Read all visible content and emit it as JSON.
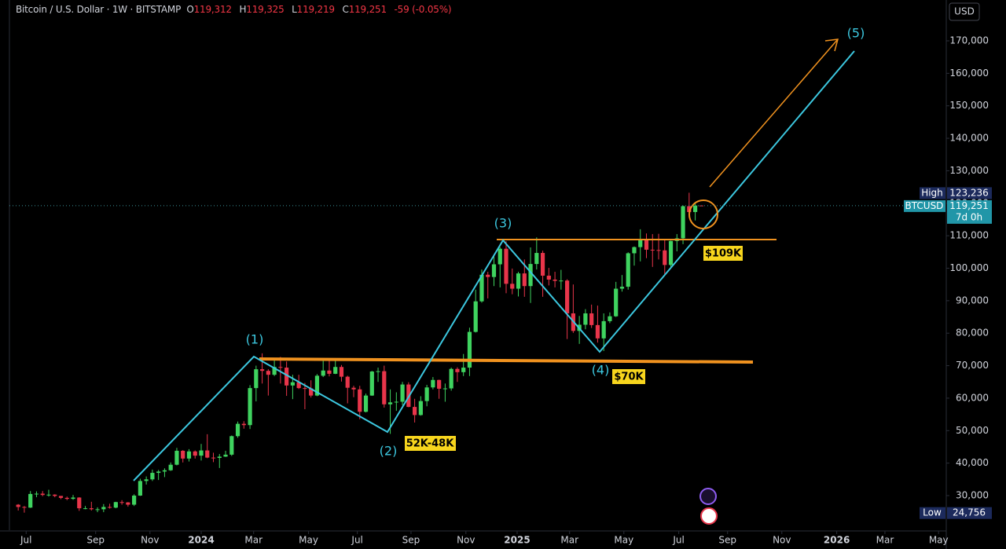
{
  "chart_data": {
    "type": "candlestick",
    "header": {
      "symbol": "Bitcoin / U.S. Dollar · 1W · BITSTAMP",
      "ohlc": [
        {
          "key": "O",
          "value": "119,312"
        },
        {
          "key": "H",
          "value": "119,325"
        },
        {
          "key": "L",
          "value": "119,219"
        },
        {
          "key": "C",
          "value": "119,251"
        }
      ],
      "change": "-59 (-0.05%)"
    },
    "currency": "USD",
    "series": [
      {
        "name": "BTCUSD",
        "up_color": "#3fd35f",
        "down_color": "#e8354a",
        "open": [
          27200,
          26500,
          26300,
          30500,
          30600,
          30200,
          30300,
          29900,
          29300,
          29000,
          29400,
          26100,
          26100,
          25800,
          25800,
          26500,
          26300,
          28000,
          27900,
          27200,
          30000,
          34500,
          35000,
          37000,
          37400,
          37800,
          39500,
          43800,
          41400,
          43600,
          42300,
          43900,
          41700,
          41600,
          42000,
          42600,
          48300,
          52100,
          51700,
          63100,
          68900,
          68400,
          67200,
          69600,
          69400,
          63900,
          64900,
          63100,
          63000,
          60800,
          66900,
          68500,
          67500,
          69600,
          66600,
          63200,
          62700,
          55800,
          60800,
          68200,
          68300,
          58100,
          58700,
          58900,
          64200,
          57300,
          54800,
          59100,
          63300,
          65600,
          62900,
          63000,
          69000,
          68000,
          69400,
          80400,
          89800,
          98000,
          97300,
          101200,
          106000,
          95200,
          93700,
          98400,
          94500,
          101300,
          104700,
          97700,
          96500,
          96100,
          96200,
          86100,
          80700,
          82600,
          86100,
          82500,
          78400,
          83700,
          85200,
          93700,
          94300,
          104600,
          106500,
          109000,
          105700,
          105600,
          105500,
          101000,
          108400,
          109200,
          119100,
          117300,
          119312
        ],
        "high": [
          27400,
          26800,
          31400,
          31300,
          31400,
          31800,
          30400,
          29900,
          29700,
          30200,
          29500,
          26800,
          28100,
          26400,
          27400,
          27500,
          28100,
          28600,
          28000,
          30400,
          35200,
          35900,
          38000,
          37900,
          38400,
          40200,
          44700,
          44000,
          44300,
          43900,
          45900,
          48900,
          43200,
          42800,
          43800,
          48500,
          52800,
          52900,
          64000,
          70000,
          73800,
          68900,
          71600,
          72700,
          71300,
          67200,
          67200,
          64700,
          65500,
          67400,
          71900,
          71900,
          71900,
          70200,
          66900,
          63800,
          63800,
          61400,
          68400,
          69400,
          70000,
          62700,
          61800,
          65000,
          64900,
          59800,
          60600,
          64100,
          66500,
          65700,
          64500,
          69400,
          69500,
          73600,
          81700,
          93400,
          99600,
          98900,
          104000,
          106500,
          108300,
          99900,
          98900,
          102700,
          106400,
          109500,
          105400,
          100100,
          98900,
          99500,
          96600,
          95000,
          85300,
          87400,
          88800,
          88500,
          86100,
          86400,
          95800,
          97900,
          104900,
          106700,
          112000,
          110700,
          110500,
          110600,
          108900,
          108500,
          110500,
          119300,
          123236,
          120200,
          119325
        ],
        "low": [
          25400,
          24756,
          26200,
          29500,
          29800,
          29700,
          29500,
          28900,
          28600,
          28700,
          25300,
          25800,
          25400,
          24900,
          24900,
          26000,
          26100,
          27200,
          26600,
          26800,
          29900,
          33400,
          34500,
          34800,
          35700,
          37600,
          39300,
          40200,
          40500,
          41400,
          40800,
          41500,
          40300,
          38500,
          41900,
          42200,
          47800,
          50600,
          50500,
          59000,
          64500,
          60800,
          66800,
          64500,
          60700,
          59700,
          62800,
          56600,
          60200,
          60600,
          66500,
          66700,
          67400,
          65100,
          58400,
          60300,
          53500,
          55600,
          60700,
          65000,
          57100,
          49000,
          56100,
          57800,
          57200,
          52500,
          54600,
          57500,
          62700,
          59800,
          58900,
          62300,
          65000,
          66800,
          66800,
          80200,
          89400,
          90700,
          94500,
          94100,
          92300,
          92000,
          91300,
          91200,
          89300,
          99600,
          91200,
          94700,
          94100,
          93400,
          78200,
          80100,
          76700,
          81200,
          81600,
          77100,
          74500,
          83100,
          85000,
          92800,
          93400,
          100800,
          102100,
          103100,
          100400,
          102700,
          98200,
          100400,
          105200,
          107400,
          115700,
          114700,
          119219
        ],
        "close": [
          26500,
          26300,
          30500,
          30600,
          30200,
          30300,
          29900,
          29300,
          29000,
          29400,
          26100,
          26100,
          25800,
          25800,
          26500,
          26300,
          28000,
          27900,
          27200,
          30000,
          34500,
          35000,
          37000,
          37400,
          37800,
          39500,
          43800,
          41400,
          43600,
          42300,
          43900,
          41700,
          41600,
          42000,
          42600,
          48300,
          52100,
          51700,
          63100,
          68900,
          68400,
          67200,
          69600,
          69400,
          63900,
          64900,
          63100,
          63000,
          60800,
          66900,
          68500,
          67500,
          69600,
          66600,
          63200,
          62700,
          55800,
          60800,
          68200,
          68300,
          58100,
          58700,
          58900,
          64200,
          57300,
          54800,
          59100,
          63300,
          65600,
          62900,
          63000,
          69000,
          68000,
          69400,
          80400,
          89800,
          98000,
          97300,
          101200,
          106000,
          95200,
          93700,
          98400,
          94500,
          101300,
          104700,
          97700,
          96500,
          96100,
          96200,
          86100,
          80700,
          82600,
          86100,
          82500,
          78400,
          83700,
          85200,
          93700,
          94300,
          104600,
          106500,
          109000,
          105700,
          105600,
          105500,
          101000,
          108400,
          109200,
          119100,
          117300,
          119312,
          119251
        ]
      }
    ],
    "xlim": [
      -1.44,
      152.16
    ],
    "xticks": [
      {
        "value": 1.3,
        "label": "Jul"
      },
      {
        "value": 12.7,
        "label": "Sep"
      },
      {
        "value": 21.6,
        "label": "Nov"
      },
      {
        "value": 30,
        "label": "2024"
      },
      {
        "value": 38.6,
        "label": "Mar"
      },
      {
        "value": 47.6,
        "label": "May"
      },
      {
        "value": 55.6,
        "label": "Jul"
      },
      {
        "value": 64.4,
        "label": "Sep"
      },
      {
        "value": 73.4,
        "label": "Nov"
      },
      {
        "value": 81.8,
        "label": "2025"
      },
      {
        "value": 90.4,
        "label": "Mar"
      },
      {
        "value": 99.3,
        "label": "May"
      },
      {
        "value": 108.3,
        "label": "Jul"
      },
      {
        "value": 116.3,
        "label": "Sep"
      },
      {
        "value": 125.2,
        "label": "Nov"
      },
      {
        "value": 134.2,
        "label": "2026"
      },
      {
        "value": 142.1,
        "label": "Mar"
      },
      {
        "value": 150.9,
        "label": "May"
      }
    ],
    "ylim": [
      19362,
      182573
    ],
    "yticks": [
      {
        "value": 30000,
        "label": "30,000"
      },
      {
        "value": 40000,
        "label": "40,000"
      },
      {
        "value": 50000,
        "label": "50,000"
      },
      {
        "value": 60000,
        "label": "60,000"
      },
      {
        "value": 70000,
        "label": "70,000"
      },
      {
        "value": 80000,
        "label": "80,000"
      },
      {
        "value": 90000,
        "label": "90,000"
      },
      {
        "value": 100000,
        "label": "100,000"
      },
      {
        "value": 110000,
        "label": "110,000"
      },
      {
        "value": 120000,
        "label": "120,000"
      },
      {
        "value": 130000,
        "label": "130,000"
      },
      {
        "value": 140000,
        "label": "140,000"
      },
      {
        "value": 150000,
        "label": "150,000"
      },
      {
        "value": 160000,
        "label": "160,000"
      },
      {
        "value": 170000,
        "label": "170,000"
      }
    ],
    "high_marker": {
      "label": "High",
      "value": 123236,
      "text": "123,236"
    },
    "last_price": {
      "label": "BTCUSD",
      "value": 119251,
      "text": "119,251",
      "countdown": "7d 0h"
    },
    "low_marker": {
      "label": "Low",
      "value": 24756,
      "text": "24,756"
    },
    "annotations": [
      "(1)",
      "(2)",
      "(3)",
      "(4)",
      "(5)",
      "$109K",
      "$70K",
      "52K-48K"
    ]
  }
}
